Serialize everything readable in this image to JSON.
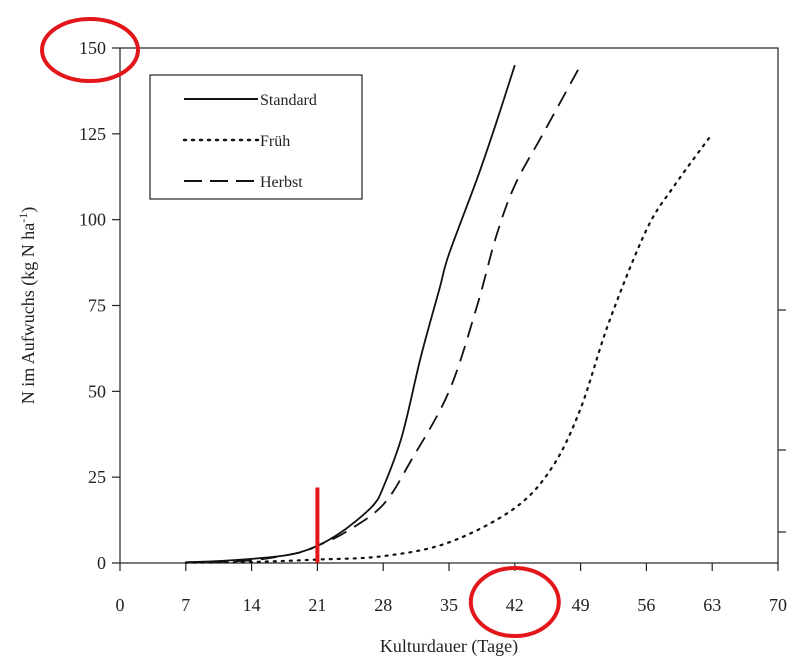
{
  "chart_data": {
    "type": "line",
    "title": "",
    "xlabel": "Kulturdauer (Tage)",
    "ylabel": "N im Aufwuchs (kg N ha",
    "ylabel_sup": "-1",
    "ylabel_close": ")",
    "xlim": [
      0,
      70
    ],
    "ylim": [
      0,
      150
    ],
    "xticks": [
      0,
      7,
      14,
      21,
      28,
      35,
      42,
      49,
      56,
      63,
      70
    ],
    "yticks": [
      0,
      25,
      50,
      75,
      100,
      125,
      150
    ],
    "grid": false,
    "legend_position": "top-left",
    "series": [
      {
        "name": "Standard",
        "style": "solid",
        "x": [
          7,
          10,
          14,
          17,
          19,
          21,
          23,
          25,
          27,
          28,
          30,
          32,
          34,
          35,
          38,
          40,
          42
        ],
        "y": [
          0.2,
          0.5,
          1.2,
          2,
          3,
          5,
          8,
          12,
          17,
          22,
          37,
          60,
          80,
          90,
          112,
          128,
          145
        ]
      },
      {
        "name": "Früh",
        "style": "dotted",
        "x": [
          7,
          14,
          21,
          28,
          35,
          42,
          46,
          49,
          52,
          56,
          59,
          63
        ],
        "y": [
          0.1,
          0.3,
          1,
          2,
          6,
          16,
          28,
          45,
          70,
          97,
          110,
          125
        ]
      },
      {
        "name": "Herbst",
        "style": "dashed",
        "x": [
          7,
          14,
          19,
          21,
          24,
          28,
          31,
          35,
          38,
          40,
          42,
          45,
          49
        ],
        "y": [
          0.2,
          0.8,
          3,
          5,
          9,
          17,
          30,
          50,
          75,
          95,
          110,
          125,
          145
        ]
      }
    ],
    "annotations": {
      "marker_x": 21,
      "marker_y_top": 22,
      "highlight_x_label": "42",
      "highlight_y_label": "150",
      "highlight_color": "#e3161b"
    }
  }
}
